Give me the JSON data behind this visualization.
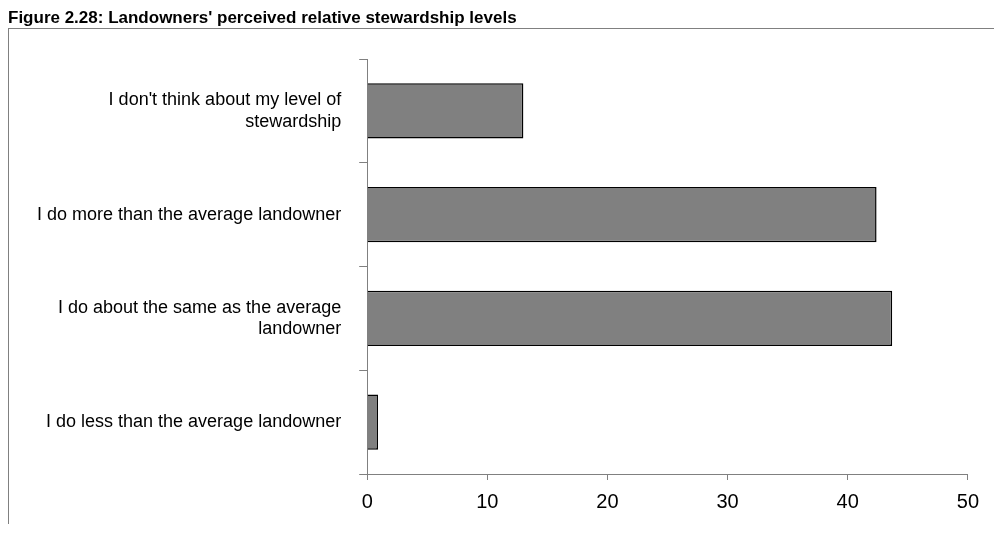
{
  "chart_data": {
    "type": "bar",
    "orientation": "horizontal",
    "title": "Figure 2.28: Landowners' perceived relative stewardship levels",
    "categories": [
      "I don't think about my level of stewardship",
      "I do more than the average landowner",
      "I do about the same as the average landowner",
      "I do less than the average landowner"
    ],
    "values": [
      13,
      42.4,
      43.7,
      0.9
    ],
    "color": "#808080",
    "xlim": [
      0,
      50
    ],
    "xticks": [
      0,
      10,
      20,
      30,
      40,
      50
    ],
    "grid": false,
    "legend": false
  }
}
